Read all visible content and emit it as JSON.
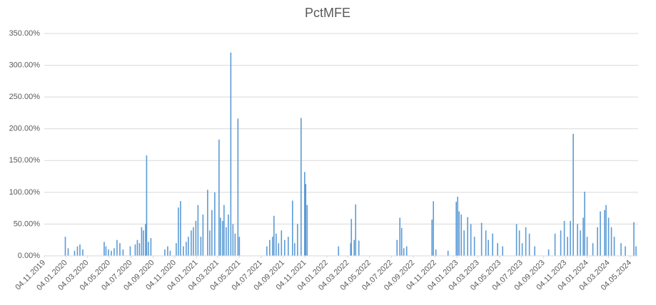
{
  "chart_data": {
    "type": "bar",
    "title": "PctMFE",
    "color": "#5b9bd5",
    "grid": true,
    "ylim": [
      0,
      350
    ],
    "yticks": [
      {
        "value": 0,
        "label": "0.00%"
      },
      {
        "value": 50,
        "label": "50.00%"
      },
      {
        "value": 100,
        "label": "100.00%"
      },
      {
        "value": 150,
        "label": "150.00%"
      },
      {
        "value": 200,
        "label": "200.00%"
      },
      {
        "value": 250,
        "label": "250.00%"
      },
      {
        "value": 300,
        "label": "300.00%"
      },
      {
        "value": 350,
        "label": "350.00%"
      }
    ],
    "xlim": [
      "2019-11-04",
      "2024-05-26"
    ],
    "xticks": [
      {
        "value": "2019-11-04",
        "label": "04.11.2019"
      },
      {
        "value": "2020-01-04",
        "label": "04.01.2020"
      },
      {
        "value": "2020-03-04",
        "label": "04.03.2020"
      },
      {
        "value": "2020-05-04",
        "label": "04.05.2020"
      },
      {
        "value": "2020-07-04",
        "label": "04.07.2020"
      },
      {
        "value": "2020-09-04",
        "label": "04.09.2020"
      },
      {
        "value": "2020-11-04",
        "label": "04.11.2020"
      },
      {
        "value": "2021-01-04",
        "label": "04.01.2021"
      },
      {
        "value": "2021-03-04",
        "label": "04.03.2021"
      },
      {
        "value": "2021-05-04",
        "label": "04.05.2021"
      },
      {
        "value": "2021-07-04",
        "label": "04.07.2021"
      },
      {
        "value": "2021-09-04",
        "label": "04.09.2021"
      },
      {
        "value": "2021-11-04",
        "label": "04.11.2021"
      },
      {
        "value": "2022-01-04",
        "label": "04.01.2022"
      },
      {
        "value": "2022-03-04",
        "label": "04.03.2022"
      },
      {
        "value": "2022-05-04",
        "label": "04.05.2022"
      },
      {
        "value": "2022-07-04",
        "label": "04.07.2022"
      },
      {
        "value": "2022-09-04",
        "label": "04.09.2022"
      },
      {
        "value": "2022-11-04",
        "label": "04.11.2022"
      },
      {
        "value": "2023-01-04",
        "label": "04.01.2023"
      },
      {
        "value": "2023-03-04",
        "label": "04.03.2023"
      },
      {
        "value": "2023-05-04",
        "label": "04.05.2023"
      },
      {
        "value": "2023-07-04",
        "label": "04.07.2023"
      },
      {
        "value": "2023-09-04",
        "label": "04.09.2023"
      },
      {
        "value": "2023-11-04",
        "label": "04.11.2023"
      },
      {
        "value": "2024-01-04",
        "label": "04.01.2024"
      },
      {
        "value": "2024-03-04",
        "label": "04.03.2024"
      },
      {
        "value": "2024-05-04",
        "label": "04.05.2024"
      }
    ],
    "x": [
      "2020-01-02",
      "2020-01-10",
      "2020-01-28",
      "2020-02-05",
      "2020-02-12",
      "2020-02-20",
      "2020-04-20",
      "2020-04-25",
      "2020-05-02",
      "2020-05-10",
      "2020-05-18",
      "2020-05-26",
      "2020-06-03",
      "2020-06-12",
      "2020-07-02",
      "2020-07-16",
      "2020-07-22",
      "2020-07-28",
      "2020-08-03",
      "2020-08-08",
      "2020-08-14",
      "2020-08-17",
      "2020-08-22",
      "2020-08-29",
      "2020-10-07",
      "2020-10-15",
      "2020-10-22",
      "2020-11-08",
      "2020-11-14",
      "2020-11-20",
      "2020-11-28",
      "2020-12-06",
      "2020-12-12",
      "2020-12-20",
      "2020-12-26",
      "2021-01-02",
      "2021-01-08",
      "2021-01-16",
      "2021-01-22",
      "2021-02-04",
      "2021-02-10",
      "2021-02-16",
      "2021-02-24",
      "2021-03-08",
      "2021-03-12",
      "2021-03-18",
      "2021-03-22",
      "2021-03-28",
      "2021-04-03",
      "2021-04-10",
      "2021-04-16",
      "2021-04-22",
      "2021-04-30",
      "2021-05-04",
      "2021-07-20",
      "2021-07-28",
      "2021-08-05",
      "2021-08-09",
      "2021-08-15",
      "2021-08-22",
      "2021-08-30",
      "2021-09-08",
      "2021-09-18",
      "2021-09-30",
      "2021-10-06",
      "2021-10-14",
      "2021-10-24",
      "2021-11-03",
      "2021-11-06",
      "2021-11-10",
      "2022-02-06",
      "2022-03-12",
      "2022-03-14",
      "2022-03-22",
      "2022-03-26",
      "2022-04-04",
      "2022-07-20",
      "2022-07-28",
      "2022-08-02",
      "2022-08-08",
      "2022-08-16",
      "2022-10-26",
      "2022-10-30",
      "2022-11-06",
      "2022-12-10",
      "2023-01-02",
      "2023-01-06",
      "2023-01-10",
      "2023-01-16",
      "2023-01-24",
      "2023-02-03",
      "2023-02-12",
      "2023-02-22",
      "2023-03-14",
      "2023-03-26",
      "2023-04-02",
      "2023-04-14",
      "2023-04-28",
      "2023-05-12",
      "2023-06-20",
      "2023-06-28",
      "2023-07-06",
      "2023-07-16",
      "2023-07-26",
      "2023-08-10",
      "2023-09-18",
      "2023-10-06",
      "2023-10-22",
      "2023-11-01",
      "2023-11-10",
      "2023-11-18",
      "2023-11-26",
      "2023-12-08",
      "2023-12-16",
      "2023-12-24",
      "2023-12-28",
      "2024-01-04",
      "2024-01-20",
      "2024-02-02",
      "2024-02-10",
      "2024-02-22",
      "2024-02-26",
      "2024-03-04",
      "2024-03-12",
      "2024-03-20",
      "2024-04-08",
      "2024-04-20",
      "2024-05-14",
      "2024-05-20"
    ],
    "values": [
      30,
      12,
      8,
      15,
      18,
      10,
      22,
      15,
      10,
      8,
      12,
      25,
      20,
      10,
      15,
      18,
      25,
      20,
      45,
      40,
      50,
      158,
      22,
      28,
      10,
      15,
      8,
      20,
      76,
      86,
      15,
      22,
      30,
      40,
      45,
      55,
      80,
      30,
      65,
      104,
      40,
      72,
      100,
      183,
      60,
      55,
      80,
      45,
      65,
      320,
      50,
      35,
      216,
      30,
      15,
      25,
      30,
      63,
      35,
      20,
      40,
      25,
      30,
      87,
      20,
      50,
      217,
      132,
      113,
      80,
      15,
      20,
      58,
      25,
      81,
      24,
      25,
      60,
      44,
      12,
      15,
      57,
      86,
      10,
      8,
      85,
      93,
      70,
      65,
      40,
      61,
      50,
      30,
      52,
      40,
      25,
      35,
      20,
      15,
      50,
      40,
      20,
      45,
      35,
      15,
      10,
      35,
      40,
      55,
      30,
      55,
      192,
      50,
      40,
      60,
      101,
      30,
      20,
      45,
      70,
      72,
      80,
      60,
      45,
      30,
      20,
      15,
      53,
      15
    ]
  }
}
